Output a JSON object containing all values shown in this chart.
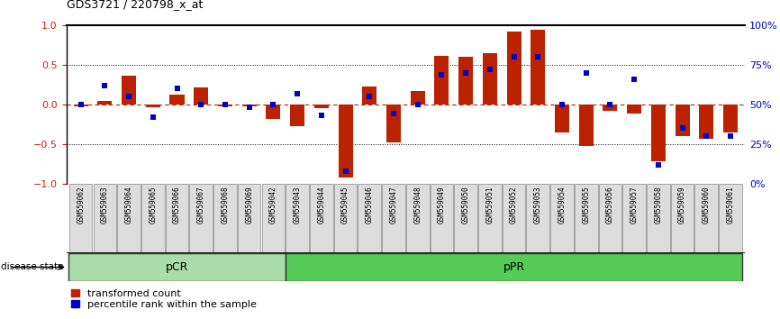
{
  "title": "GDS3721 / 220798_x_at",
  "samples": [
    "GSM559062",
    "GSM559063",
    "GSM559064",
    "GSM559065",
    "GSM559066",
    "GSM559067",
    "GSM559068",
    "GSM559069",
    "GSM559042",
    "GSM559043",
    "GSM559044",
    "GSM559045",
    "GSM559046",
    "GSM559047",
    "GSM559048",
    "GSM559049",
    "GSM559050",
    "GSM559051",
    "GSM559052",
    "GSM559053",
    "GSM559054",
    "GSM559055",
    "GSM559056",
    "GSM559057",
    "GSM559058",
    "GSM559059",
    "GSM559060",
    "GSM559061"
  ],
  "transformed_count": [
    -0.02,
    0.05,
    0.37,
    -0.03,
    0.12,
    0.22,
    -0.02,
    -0.02,
    -0.18,
    -0.27,
    -0.05,
    -0.92,
    0.23,
    -0.48,
    0.17,
    0.61,
    0.6,
    0.65,
    0.92,
    0.95,
    -0.35,
    -0.53,
    -0.08,
    -0.12,
    -0.72,
    -0.4,
    -0.43,
    -0.35
  ],
  "percentile_rank": [
    0.5,
    0.62,
    0.55,
    0.42,
    0.6,
    0.5,
    0.5,
    0.48,
    0.5,
    0.57,
    0.43,
    0.08,
    0.55,
    0.44,
    0.5,
    0.69,
    0.7,
    0.72,
    0.8,
    0.8,
    0.5,
    0.7,
    0.5,
    0.66,
    0.12,
    0.35,
    0.3,
    0.3
  ],
  "group_pCR_indices": [
    0,
    8
  ],
  "group_pPR_indices": [
    9,
    27
  ],
  "bar_color": "#bb2200",
  "dot_color": "#0000cc",
  "background_color": "#ffffff",
  "pCR_color": "#aaddaa",
  "pPR_color": "#55cc55",
  "label_color_left": "#cc2200",
  "label_color_right": "#0000cc",
  "ylim": [
    -1.0,
    1.0
  ],
  "y_left_ticks": [
    -1,
    -0.5,
    0,
    0.5,
    1
  ],
  "y_right_ticks": [
    0,
    25,
    50,
    75,
    100
  ],
  "dotted_lines": [
    -0.5,
    0.5
  ],
  "bar_width": 0.6
}
